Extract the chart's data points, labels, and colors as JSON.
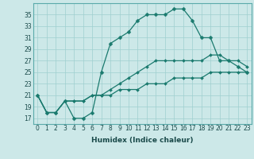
{
  "xlabel": "Humidex (Indice chaleur)",
  "bg_color": "#cce8e8",
  "line_color": "#1a7a6e",
  "grid_color": "#9fcfcf",
  "xlim": [
    -0.5,
    23.5
  ],
  "ylim": [
    16,
    37
  ],
  "yticks": [
    17,
    19,
    21,
    23,
    25,
    27,
    29,
    31,
    33,
    35
  ],
  "xticks": [
    0,
    1,
    2,
    3,
    4,
    5,
    6,
    7,
    8,
    9,
    10,
    11,
    12,
    13,
    14,
    15,
    16,
    17,
    18,
    19,
    20,
    21,
    22,
    23
  ],
  "series": [
    [
      21,
      18,
      18,
      20,
      17,
      17,
      18,
      25,
      30,
      31,
      32,
      34,
      35,
      35,
      35,
      36,
      36,
      34,
      31,
      31,
      27,
      27,
      26,
      25
    ],
    [
      21,
      18,
      18,
      20,
      20,
      20,
      21,
      21,
      22,
      23,
      24,
      25,
      26,
      27,
      27,
      27,
      27,
      27,
      27,
      28,
      28,
      27,
      27,
      26
    ],
    [
      21,
      18,
      18,
      20,
      20,
      20,
      21,
      21,
      21,
      22,
      22,
      22,
      23,
      23,
      23,
      24,
      24,
      24,
      24,
      25,
      25,
      25,
      25,
      25
    ]
  ],
  "tick_fontsize": 5.5,
  "xlabel_fontsize": 6.5,
  "tick_color": "#1a4a4a",
  "spine_color": "#5aaaaa"
}
